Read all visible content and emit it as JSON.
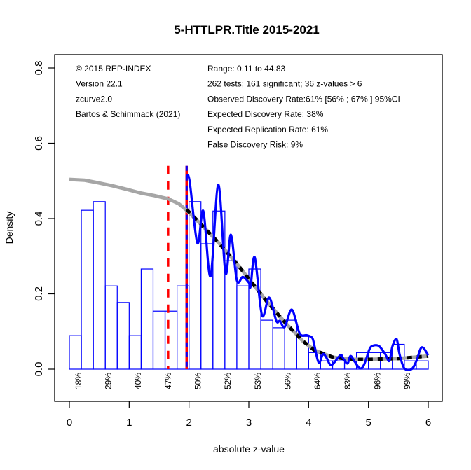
{
  "chart_data": {
    "type": "bar",
    "title": "5-HTTLPR.Title 2015-2021",
    "xlabel": "absolute z-value",
    "ylabel": "Density",
    "xlim": [
      0,
      6
    ],
    "ylim": [
      0,
      0.8
    ],
    "x_ticks": [
      0,
      1,
      2,
      3,
      4,
      5,
      6
    ],
    "x_tick_labels": [
      "0",
      "1",
      "2",
      "3",
      "4",
      "5",
      "6"
    ],
    "y_ticks": [
      0,
      0.2,
      0.4,
      0.6,
      0.8
    ],
    "y_tick_labels": [
      "0.0",
      "0.2",
      "0.4",
      "0.6",
      "0.8"
    ],
    "grid": false,
    "histogram": {
      "bin_width": 0.2,
      "bin_start": 0,
      "color": "#0000ff",
      "values": [
        0.089,
        0.422,
        0.445,
        0.221,
        0.177,
        0.089,
        0.266,
        0.154,
        0.154,
        0.221,
        0.445,
        0.333,
        0.42,
        0.288,
        0.221,
        0.266,
        0.13,
        0.11,
        0.13,
        0.087,
        0.044,
        0.022,
        0.022,
        0.022,
        0.044,
        0.044,
        0.044,
        0.066,
        0.022,
        0.022
      ]
    },
    "series": [
      {
        "name": "model-fit-full",
        "style": "solid",
        "color": "#a6a6a6",
        "x": [
          0.0,
          0.25,
          0.48,
          0.72,
          0.95,
          1.19,
          1.42,
          1.66,
          1.83,
          1.96,
          2.2,
          2.5,
          2.8,
          3.0,
          3.3,
          3.6,
          3.9,
          4.1,
          4.4,
          4.7,
          5.0,
          5.5,
          6.0
        ],
        "y": [
          0.504,
          0.502,
          0.495,
          0.487,
          0.478,
          0.468,
          0.461,
          0.452,
          0.439,
          0.422,
          0.385,
          0.335,
          0.28,
          0.24,
          0.18,
          0.125,
          0.075,
          0.05,
          0.032,
          0.026,
          0.026,
          0.028,
          0.035
        ]
      },
      {
        "name": "model-fit-significant",
        "style": "dashed",
        "color": "#000000",
        "x": [
          1.96,
          2.2,
          2.5,
          2.8,
          3.0,
          3.3,
          3.6,
          3.9,
          4.1,
          4.4,
          4.7,
          5.0,
          5.5,
          6.0
        ],
        "y": [
          0.424,
          0.385,
          0.335,
          0.28,
          0.24,
          0.18,
          0.125,
          0.075,
          0.05,
          0.032,
          0.026,
          0.026,
          0.028,
          0.035
        ]
      },
      {
        "name": "kernel-density",
        "style": "solid",
        "color": "#0000ff",
        "x": [
          1.96,
          2.01,
          2.14,
          2.24,
          2.36,
          2.49,
          2.61,
          2.7,
          2.8,
          2.9,
          3.0,
          3.03,
          3.1,
          3.22,
          3.34,
          3.46,
          3.52,
          3.6,
          3.72,
          3.85,
          3.97,
          4.06,
          4.1,
          4.17,
          4.24,
          4.3,
          4.38,
          4.53,
          4.58,
          4.65,
          4.7,
          4.77,
          4.86,
          4.93,
          5.02,
          5.09,
          5.18,
          5.28,
          5.35,
          5.4,
          5.47,
          5.52,
          5.6,
          5.72,
          5.8,
          5.89,
          6.0
        ],
        "y": [
          0.51,
          0.5,
          0.335,
          0.42,
          0.247,
          0.49,
          0.255,
          0.357,
          0.236,
          0.245,
          0.23,
          0.22,
          0.297,
          0.143,
          0.19,
          0.128,
          0.128,
          0.112,
          0.158,
          0.095,
          0.09,
          0.083,
          0.06,
          0.017,
          0.04,
          0.03,
          0.011,
          0.037,
          0.028,
          0.015,
          0.035,
          0.02,
          0.002,
          0.013,
          0.054,
          0.063,
          0.061,
          0.04,
          0.022,
          0.06,
          0.08,
          0.04,
          0.002,
          0.0,
          0.021,
          0.058,
          0.037
        ]
      }
    ],
    "vlines": [
      {
        "name": "criterion-z-1.65",
        "x": 1.65,
        "y_top": 0.54,
        "color": "#ff0000",
        "style": "dashed"
      },
      {
        "name": "criterion-z-1.96-red",
        "x": 1.96,
        "y_top": 0.54,
        "color": "#ff0000",
        "style": "solid"
      },
      {
        "name": "criterion-z-1.96-blue",
        "x": 1.96,
        "y_top": 0.54,
        "color": "#0000ff",
        "style": "dashed"
      }
    ],
    "power_labels": {
      "x": [
        0.15,
        0.65,
        1.15,
        1.65,
        2.15,
        2.65,
        3.15,
        3.65,
        4.15,
        4.65,
        5.15,
        5.65
      ],
      "labels": [
        "18%",
        "29%",
        "40%",
        "47%",
        "50%",
        "52%",
        "53%",
        "56%",
        "64%",
        "83%",
        "96%",
        "99%"
      ]
    },
    "annotations_left": [
      "© 2015 REP-INDEX",
      "Version 22.1",
      "zcurve2.0",
      "Bartos & Schimmack (2021)"
    ],
    "annotations_right": [
      "Range: 0.11 to 44.83",
      "262 tests; 161 significant; 36 z-values > 6",
      "Observed Discovery Rate:61% [56% ; 67% ] 95%CI",
      "Expected Discovery Rate: 38%",
      "Expected Replication Rate: 61%",
      "False Discovery Risk: 9%"
    ]
  }
}
